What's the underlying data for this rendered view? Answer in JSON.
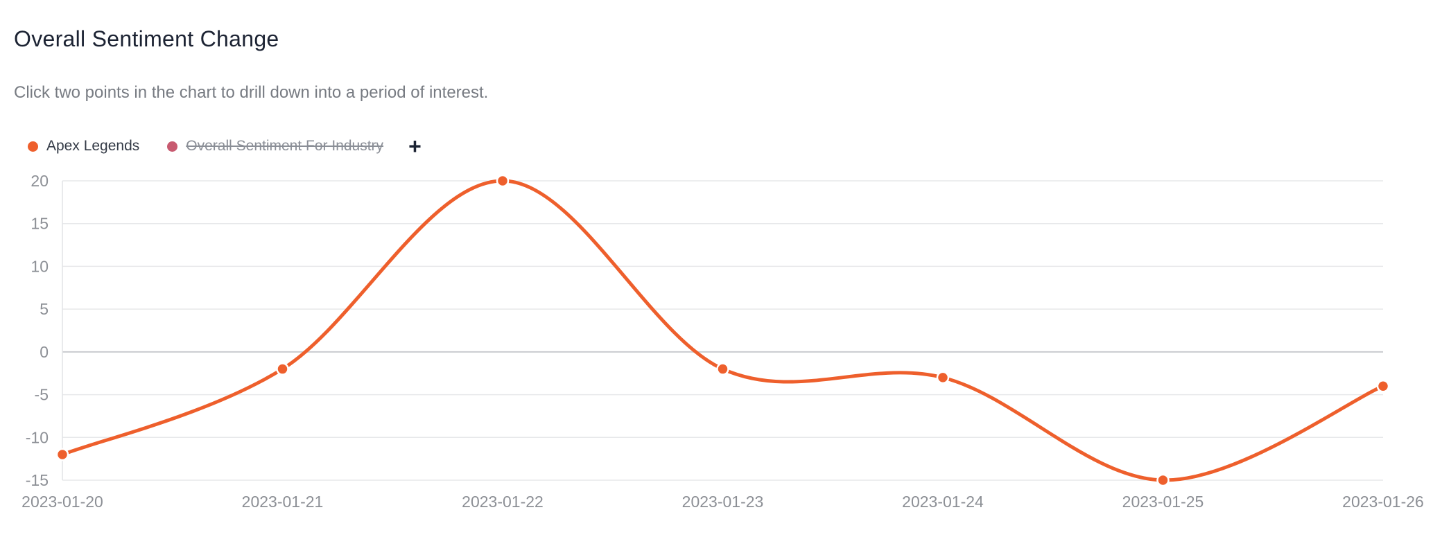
{
  "header": {
    "title": "Overall Sentiment Change",
    "subtitle": "Click two points in the chart to drill down into a period of interest."
  },
  "legend": {
    "items": [
      {
        "label": "Apex Legends",
        "color": "#ee5f2c",
        "hidden": false
      },
      {
        "label": "Overall Sentiment For Industry",
        "color": "#c85a70",
        "hidden": true
      }
    ],
    "add_symbol": "+"
  },
  "chart_data": {
    "type": "line",
    "x": [
      "2023-01-20",
      "2023-01-21",
      "2023-01-22",
      "2023-01-23",
      "2023-01-24",
      "2023-01-25",
      "2023-01-26"
    ],
    "series": [
      {
        "name": "Apex Legends",
        "color": "#ee5f2c",
        "values": [
          -12,
          -2,
          20,
          -2,
          -3,
          -15,
          -4
        ]
      }
    ],
    "yticks": [
      20,
      15,
      10,
      5,
      0,
      -5,
      -10,
      -15
    ],
    "ylim": [
      -15,
      20
    ],
    "grid": true,
    "legend_position": "top-left",
    "xlabel": "",
    "ylabel": ""
  }
}
